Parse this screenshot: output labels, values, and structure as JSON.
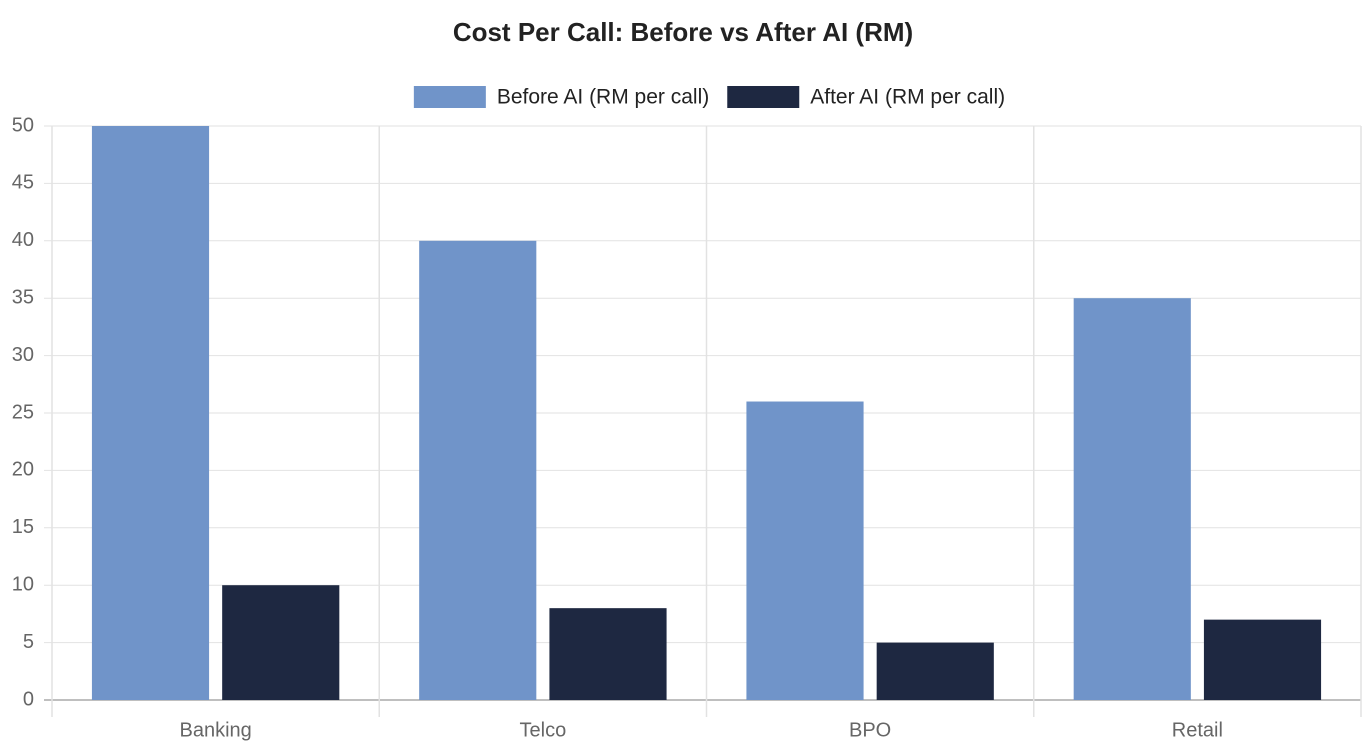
{
  "chart_data": {
    "type": "bar",
    "title": "Cost Per Call: Before vs After AI (RM)",
    "categories": [
      "Banking",
      "Telco",
      "BPO",
      "Retail"
    ],
    "series": [
      {
        "name": "Before AI (RM per call)",
        "color": "#7094c9",
        "values": [
          50,
          40,
          26,
          35
        ]
      },
      {
        "name": "After AI (RM per call)",
        "color": "#1e2841",
        "values": [
          10,
          8,
          5,
          7
        ]
      }
    ],
    "ylim": [
      0,
      50
    ],
    "yticks": [
      0,
      5,
      10,
      15,
      20,
      25,
      30,
      35,
      40,
      45,
      50
    ],
    "grid": true,
    "legend": "top"
  }
}
